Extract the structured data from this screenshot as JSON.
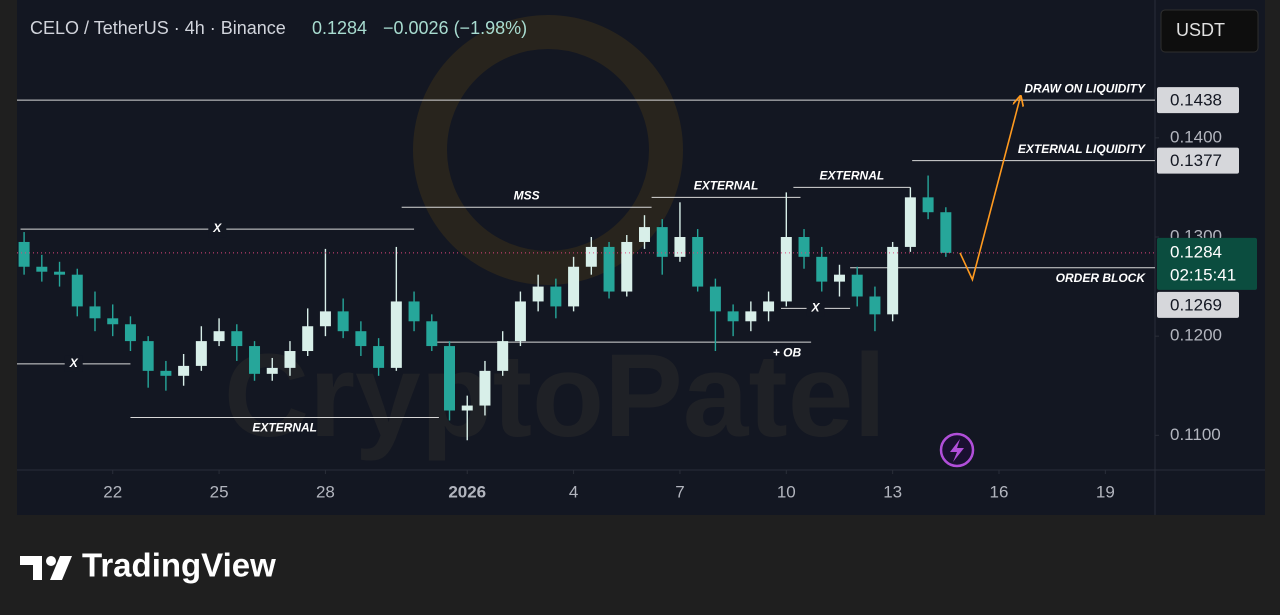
{
  "chart_data": {
    "type": "candlestick",
    "header": {
      "symbol": "CELO / TetherUS · 4h · Binance",
      "price": "0.1284",
      "change": "−0.0026 (−1.98%)"
    },
    "currency_button": "USDT",
    "watermark": "CryptoPatel",
    "brand": "TradingView",
    "xlim": [
      19.3,
      51.4
    ],
    "ylim": [
      0.1065,
      0.1534
    ],
    "grid": false,
    "xticks": [
      22,
      25,
      28,
      {
        "value": 32,
        "label": "2026",
        "bold": true
      },
      {
        "value": 35,
        "label": "4"
      },
      {
        "value": 38,
        "label": "7"
      },
      {
        "value": 41,
        "label": "10"
      },
      {
        "value": 44,
        "label": "13"
      },
      {
        "value": 47,
        "label": "16"
      },
      {
        "value": 50,
        "label": "19"
      }
    ],
    "yticks": [
      {
        "value": 0.11,
        "label": "0.1100"
      },
      {
        "value": 0.12,
        "label": "0.1200"
      },
      {
        "value": 0.13,
        "label": "0.1300"
      },
      {
        "value": 0.14,
        "label": "0.1400"
      }
    ],
    "candles": {
      "up_color": "#d8efe9",
      "down_color": "#26a69a",
      "x": [
        19.5,
        20,
        20.5,
        21,
        21.5,
        22,
        22.5,
        23,
        23.5,
        24,
        24.5,
        25,
        25.5,
        26,
        26.5,
        27,
        27.5,
        28,
        28.5,
        29,
        29.5,
        30,
        30.5,
        31,
        31.5,
        32,
        32.5,
        33,
        33.5,
        34,
        34.5,
        35,
        35.5,
        36,
        36.5,
        37,
        37.5,
        38,
        38.5,
        39,
        39.5,
        40,
        40.5,
        41,
        41.5,
        42,
        42.5,
        43,
        43.5,
        44,
        44.5,
        45,
        45.5
      ],
      "open": [
        0.1295,
        0.127,
        0.1265,
        0.1262,
        0.123,
        0.1218,
        0.1212,
        0.1195,
        0.1165,
        0.116,
        0.117,
        0.1195,
        0.1205,
        0.119,
        0.1162,
        0.1168,
        0.1185,
        0.121,
        0.1225,
        0.1205,
        0.119,
        0.1168,
        0.1235,
        0.1215,
        0.119,
        0.1125,
        0.113,
        0.1165,
        0.1195,
        0.1235,
        0.125,
        0.123,
        0.127,
        0.129,
        0.1245,
        0.1295,
        0.131,
        0.128,
        0.13,
        0.125,
        0.1225,
        0.1215,
        0.1225,
        0.1235,
        0.13,
        0.128,
        0.1255,
        0.1262,
        0.124,
        0.1222,
        0.129,
        0.134,
        0.1325
      ],
      "high": [
        0.1305,
        0.1282,
        0.1275,
        0.1268,
        0.1245,
        0.1232,
        0.122,
        0.12,
        0.1175,
        0.1182,
        0.121,
        0.1218,
        0.1212,
        0.1195,
        0.1178,
        0.1195,
        0.1228,
        0.1288,
        0.1238,
        0.1215,
        0.1198,
        0.129,
        0.1245,
        0.1222,
        0.1195,
        0.114,
        0.1175,
        0.1205,
        0.1245,
        0.1262,
        0.1258,
        0.128,
        0.13,
        0.1295,
        0.1302,
        0.1322,
        0.1318,
        0.1335,
        0.1308,
        0.1258,
        0.1232,
        0.1235,
        0.1245,
        0.1345,
        0.1308,
        0.129,
        0.1272,
        0.127,
        0.125,
        0.1295,
        0.135,
        0.1362,
        0.133
      ],
      "low": [
        0.1262,
        0.1255,
        0.125,
        0.122,
        0.1205,
        0.12,
        0.1185,
        0.1148,
        0.1145,
        0.115,
        0.1165,
        0.119,
        0.1175,
        0.1155,
        0.1155,
        0.116,
        0.118,
        0.12,
        0.1198,
        0.118,
        0.116,
        0.1165,
        0.1205,
        0.1185,
        0.1115,
        0.1095,
        0.112,
        0.116,
        0.119,
        0.1225,
        0.1218,
        0.1225,
        0.1262,
        0.1238,
        0.124,
        0.1288,
        0.1262,
        0.1275,
        0.1245,
        0.1185,
        0.12,
        0.1205,
        0.1215,
        0.123,
        0.1268,
        0.1245,
        0.124,
        0.123,
        0.1205,
        0.1215,
        0.1285,
        0.1318,
        0.128
      ],
      "close": [
        0.127,
        0.1265,
        0.1262,
        0.123,
        0.1218,
        0.1212,
        0.1195,
        0.1165,
        0.116,
        0.117,
        0.1195,
        0.1205,
        0.119,
        0.1162,
        0.1168,
        0.1185,
        0.121,
        0.1225,
        0.1205,
        0.119,
        0.1168,
        0.1235,
        0.1215,
        0.119,
        0.1125,
        0.113,
        0.1165,
        0.1195,
        0.1235,
        0.125,
        0.123,
        0.127,
        0.129,
        0.1245,
        0.1295,
        0.131,
        0.128,
        0.13,
        0.125,
        0.1225,
        0.1215,
        0.1225,
        0.1235,
        0.13,
        0.128,
        0.1255,
        0.1262,
        0.124,
        0.1222,
        0.129,
        0.134,
        0.1325,
        0.1284
      ]
    },
    "last_price": 0.1284,
    "countdown": "02:15:41",
    "last_price_color": "#e0457b",
    "annotations": [
      {
        "text": "DRAW ON LIQUIDITY",
        "level": 0.1438,
        "x": [
          19.3,
          51.4
        ],
        "label_at": "above-end",
        "tag": true
      },
      {
        "text": "EXTERNAL LIQUIDITY",
        "level": 0.1377,
        "x": [
          44.55,
          51.4
        ],
        "label_at": "above-end",
        "tag": true
      },
      {
        "text": "X",
        "level": 0.1308,
        "x": [
          19.4,
          30.5
        ],
        "label_at": "on"
      },
      {
        "text": "MSS",
        "level": 0.133,
        "x": [
          30.15,
          37.2
        ],
        "label_at": "above"
      },
      {
        "text": "EXTERNAL",
        "level": 0.134,
        "x": [
          37.2,
          41.4
        ],
        "label_at": "above"
      },
      {
        "text": "EXTERNAL",
        "level": 0.135,
        "x": [
          41.2,
          44.5
        ],
        "label_at": "above"
      },
      {
        "text": "X",
        "level": 0.1172,
        "x": [
          19.3,
          22.5
        ],
        "label_at": "on"
      },
      {
        "text": "EXTERNAL",
        "level": 0.1118,
        "x": [
          22.5,
          31.2
        ],
        "label_at": "below"
      },
      {
        "text": "+ OB",
        "level": 0.1194,
        "x": [
          31.15,
          41.7
        ],
        "label_at": "below-end"
      },
      {
        "text": "X",
        "level": 0.1228,
        "x": [
          40.85,
          42.8
        ],
        "label_at": "on"
      },
      {
        "text": "ORDER BLOCK",
        "level": 0.1269,
        "x": [
          42.8,
          51.4
        ],
        "label_at": "below-end",
        "tag": true
      }
    ],
    "projection": {
      "color": "#ff9a1f",
      "x": [
        45.9,
        46.25,
        47.6
      ],
      "y": [
        0.1284,
        0.1257,
        0.1441
      ]
    }
  }
}
